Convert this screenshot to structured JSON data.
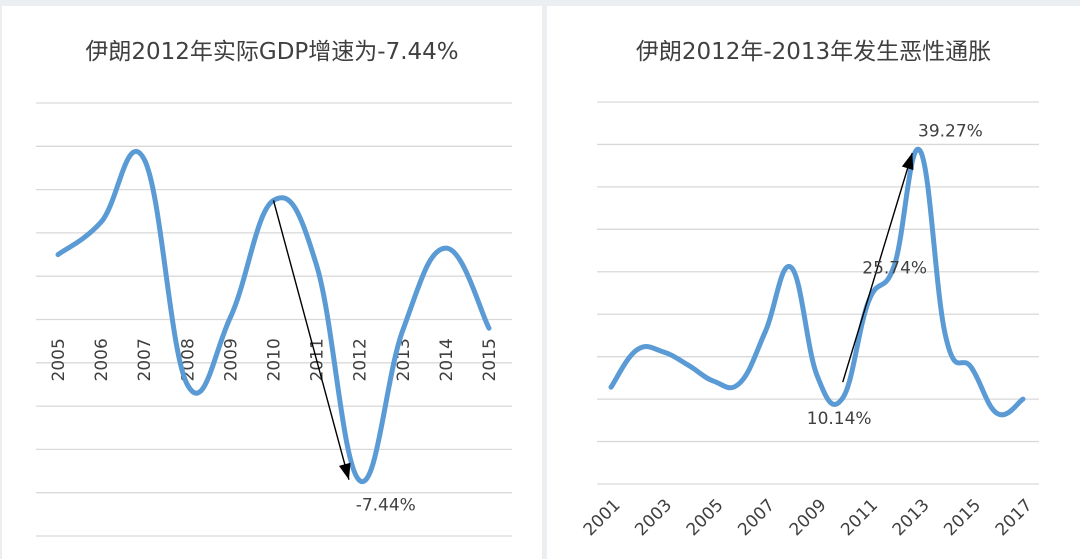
{
  "chart_data": [
    {
      "type": "line",
      "title": "伊朗2012年实际GDP增速为-7.44%",
      "categories": [
        "2005",
        "2006",
        "2007",
        "2008",
        "2009",
        "2010",
        "2011",
        "2012",
        "2013",
        "2014",
        "2015"
      ],
      "x": [
        2005,
        2006,
        2007,
        2008,
        2009,
        2010,
        2011,
        2012,
        2013,
        2014,
        2015
      ],
      "values": [
        3.0,
        4.5,
        7.4,
        -3.0,
        0.1,
        5.5,
        2.5,
        -7.44,
        -0.5,
        3.3,
        -0.4
      ],
      "ylim": [
        -10,
        10
      ],
      "gridlines": [
        10,
        8,
        6,
        4,
        2,
        0,
        -2,
        -4,
        -6,
        -8,
        -10
      ],
      "grid": true,
      "legend": "none",
      "color": "#5b9bd5",
      "annotations": [
        {
          "text": "-7.44%",
          "x": 2012,
          "y": -7.44
        }
      ],
      "arrow": {
        "from": [
          2010,
          5.5
        ],
        "to": [
          2011.75,
          -7.4
        ]
      }
    },
    {
      "type": "line",
      "title": "伊朗2012年-2013年发生恶性通胀",
      "categories": [
        "2001",
        "2003",
        "2005",
        "2007",
        "2009",
        "2011",
        "2013",
        "2015",
        "2017"
      ],
      "x": [
        2001,
        2002,
        2003,
        2004,
        2005,
        2006,
        2007,
        2008,
        2009,
        2010,
        2011,
        2012,
        2013,
        2014,
        2015,
        2016,
        2017
      ],
      "values": [
        11.4,
        15.8,
        15.6,
        14.0,
        12.1,
        11.9,
        18.0,
        25.5,
        12.8,
        10.14,
        21.5,
        25.74,
        39.27,
        17.3,
        13.7,
        8.3,
        10.0
      ],
      "ylim": [
        0,
        45
      ],
      "gridlines": [
        45,
        40,
        35,
        30,
        25,
        20,
        15,
        10,
        5,
        0
      ],
      "grid": true,
      "legend": "none",
      "color": "#5b9bd5",
      "annotations": [
        {
          "text": "39.27%",
          "x": 2013,
          "y": 39.27
        },
        {
          "text": "25.74%",
          "x": 2012,
          "y": 25.74
        },
        {
          "text": "10.14%",
          "x": 2010,
          "y": 10.14
        }
      ],
      "arrow": {
        "from": [
          2010,
          12.0
        ],
        "to": [
          2012.7,
          39.0
        ]
      }
    }
  ]
}
